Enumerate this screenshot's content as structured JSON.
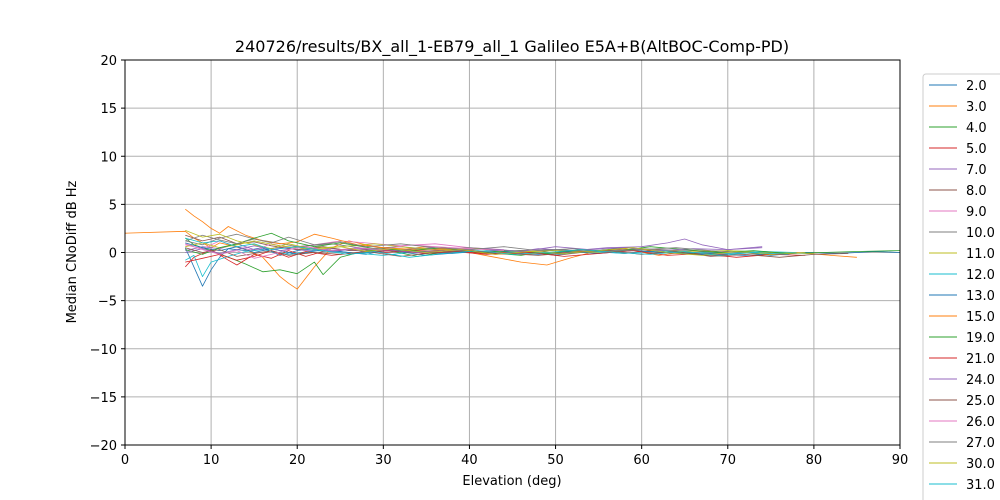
{
  "chart_data": {
    "type": "line",
    "title": "240726/results/BX_all_1-EB79_all_1 Galileo E5A+B(AltBOC-Comp-PD)",
    "xlabel": "Elevation (deg)",
    "ylabel": "Median CNoDiff dB Hz",
    "xlim": [
      0,
      90
    ],
    "ylim": [
      -20,
      20
    ],
    "xticks": [
      0,
      10,
      20,
      30,
      40,
      50,
      60,
      70,
      80,
      90
    ],
    "yticks": [
      -20,
      -15,
      -10,
      -5,
      0,
      5,
      10,
      15,
      20
    ],
    "grid": true,
    "legend_placement": "right, outside plot (clipped)",
    "series": [
      {
        "name": "2.0",
        "color": "#1f77b4",
        "x": [
          7,
          8,
          9,
          10,
          11,
          12,
          14,
          16,
          18,
          20,
          22,
          25,
          28,
          30,
          33,
          36,
          40,
          44,
          48,
          52,
          56,
          60,
          64,
          68,
          72,
          76,
          80
        ],
        "y": [
          0.5,
          -1.5,
          -3.5,
          -1.8,
          -0.5,
          0.4,
          0.2,
          0.5,
          -0.3,
          0.2,
          0.4,
          0.1,
          -0.2,
          0.2,
          0.3,
          -0.1,
          0.1,
          0.0,
          -0.2,
          0.1,
          0.2,
          0.3,
          0.1,
          -0.2,
          -0.3,
          -0.1,
          0.0
        ]
      },
      {
        "name": "3.0",
        "color": "#ff7f0e",
        "x": [
          0,
          7,
          8,
          9,
          10,
          11,
          12,
          14,
          16,
          18,
          19,
          20,
          22,
          24,
          26,
          28,
          30,
          32,
          35,
          38,
          40,
          43,
          46,
          49,
          52,
          55,
          58,
          62,
          66,
          70,
          74,
          78,
          82,
          85
        ],
        "y": [
          2.0,
          2.2,
          1.5,
          1.0,
          0.5,
          1.0,
          0.8,
          0.3,
          -0.5,
          -2.5,
          -3.2,
          -3.8,
          -1.5,
          0.5,
          1.2,
          0.8,
          0.5,
          0.3,
          0.6,
          0.2,
          0.0,
          -0.5,
          -1.0,
          -1.3,
          -0.5,
          0.2,
          0.4,
          -0.3,
          0.2,
          0.1,
          -0.2,
          0.0,
          -0.3,
          -0.5
        ]
      },
      {
        "name": "4.0",
        "color": "#2ca02c",
        "x": [
          7,
          8,
          10,
          12,
          14,
          16,
          18,
          20,
          22,
          23,
          25,
          28,
          30,
          34,
          38,
          42,
          46,
          50,
          54,
          58,
          62,
          66,
          70,
          75
        ],
        "y": [
          1.5,
          0.8,
          0.2,
          -0.5,
          -1.2,
          -2.0,
          -1.8,
          -2.2,
          -1.0,
          -2.3,
          -0.5,
          0.2,
          0.3,
          -0.4,
          0.2,
          0.0,
          -0.3,
          0.3,
          0.1,
          0.5,
          0.2,
          -0.1,
          0.2,
          0.0
        ]
      },
      {
        "name": "5.0",
        "color": "#d62728",
        "x": [
          7,
          8,
          10,
          12,
          13,
          15,
          17,
          19,
          21,
          23,
          26,
          30,
          34,
          38,
          42,
          46,
          50,
          54,
          58,
          62,
          66,
          70
        ],
        "y": [
          -1.5,
          -0.5,
          0.3,
          -0.8,
          -1.3,
          -0.2,
          -0.6,
          0.2,
          -0.4,
          0.1,
          0.3,
          0.0,
          0.2,
          0.1,
          -0.2,
          0.1,
          0.0,
          0.2,
          -0.1,
          0.3,
          0.0,
          -0.2
        ]
      },
      {
        "name": "7.0",
        "color": "#9467bd",
        "x": [
          7,
          9,
          11,
          13,
          15,
          18,
          21,
          24,
          28,
          32,
          36,
          40,
          44,
          48,
          52,
          56,
          60,
          63,
          65,
          67,
          70,
          74
        ],
        "y": [
          0.2,
          0.6,
          0.4,
          0.9,
          0.3,
          0.5,
          0.2,
          0.4,
          0.1,
          0.3,
          0.5,
          0.2,
          -0.1,
          0.4,
          0.2,
          0.5,
          0.6,
          1.0,
          1.4,
          0.8,
          0.3,
          0.5
        ]
      },
      {
        "name": "8.0",
        "color": "#8c564b",
        "x": [
          7,
          9,
          11,
          13,
          15,
          17,
          20,
          23,
          26,
          30,
          34,
          38,
          42,
          46,
          50,
          54,
          58,
          62,
          66,
          70
        ],
        "y": [
          1.8,
          1.2,
          1.6,
          0.9,
          1.1,
          0.7,
          0.3,
          0.6,
          0.2,
          0.4,
          0.1,
          0.3,
          -0.1,
          0.2,
          -0.3,
          0.1,
          0.3,
          0.0,
          -0.2,
          -0.4
        ]
      },
      {
        "name": "9.0",
        "color": "#e377c2",
        "x": [
          7,
          9,
          11,
          13,
          15,
          17,
          19,
          22,
          25,
          28,
          32,
          36,
          40,
          44
        ],
        "y": [
          0.8,
          0.4,
          1.2,
          0.6,
          0.2,
          0.9,
          0.5,
          0.8,
          1.2,
          1.0,
          0.7,
          0.9,
          0.5,
          0.3
        ]
      },
      {
        "name": "10.0",
        "color": "#7f7f7f",
        "x": [
          7,
          9,
          11,
          13,
          15,
          17,
          20,
          24,
          28,
          32,
          36,
          40,
          45,
          50,
          55,
          60,
          65,
          70,
          75
        ],
        "y": [
          1.2,
          0.8,
          1.5,
          1.9,
          1.4,
          1.1,
          0.6,
          0.9,
          0.4,
          0.6,
          0.3,
          0.5,
          0.2,
          0.3,
          0.1,
          0.4,
          0.2,
          -0.1,
          0.0
        ]
      },
      {
        "name": "11.0",
        "color": "#bcbd22",
        "x": [
          7,
          9,
          11,
          13,
          15,
          18,
          21,
          25,
          29,
          33,
          37,
          41,
          45,
          50,
          55,
          60,
          65,
          70,
          75,
          80
        ],
        "y": [
          0.6,
          1.0,
          0.5,
          0.8,
          1.2,
          0.7,
          0.4,
          0.6,
          0.9,
          0.5,
          0.3,
          0.4,
          0.1,
          0.2,
          0.0,
          0.3,
          0.1,
          0.2,
          0.0,
          -0.1
        ]
      },
      {
        "name": "12.0",
        "color": "#17becf",
        "x": [
          7,
          8,
          9,
          10,
          12,
          14,
          16,
          19,
          22,
          26,
          30,
          34,
          38,
          42,
          46,
          50,
          54,
          58,
          62,
          66,
          70,
          74,
          78
        ],
        "y": [
          -0.8,
          -0.3,
          -2.5,
          -1.0,
          -0.4,
          0.1,
          0.3,
          -0.2,
          0.2,
          0.0,
          -0.3,
          0.1,
          -0.1,
          0.2,
          0.0,
          -0.2,
          0.1,
          -0.1,
          0.2,
          0.0,
          -0.1,
          0.1,
          0.0
        ]
      },
      {
        "name": "13.0",
        "color": "#1f77b4",
        "x": [
          7,
          9,
          11,
          13,
          15,
          17,
          20,
          23,
          27,
          31,
          35,
          39,
          43,
          47,
          51,
          55,
          59,
          63,
          67,
          71,
          75,
          79,
          83,
          87,
          90
        ],
        "y": [
          1.0,
          0.5,
          0.2,
          0.6,
          0.0,
          0.4,
          -0.2,
          0.3,
          -0.1,
          0.2,
          -0.3,
          0.0,
          0.2,
          -0.2,
          0.1,
          -0.1,
          0.2,
          0.0,
          -0.2,
          0.1,
          -0.3,
          0.0,
          -0.1,
          0.1,
          0.0
        ]
      },
      {
        "name": "15.0",
        "color": "#ff7f0e",
        "x": [
          7,
          8,
          9,
          10,
          11,
          12,
          14,
          16,
          18,
          20,
          22,
          24,
          27,
          30,
          34,
          38,
          42,
          46,
          50
        ],
        "y": [
          4.5,
          3.8,
          3.2,
          2.5,
          2.0,
          2.7,
          1.8,
          1.2,
          0.9,
          1.1,
          1.9,
          1.5,
          0.8,
          0.5,
          0.3,
          0.4,
          0.1,
          -0.2,
          0.0
        ]
      },
      {
        "name": "19.0",
        "color": "#2ca02c",
        "x": [
          7,
          9,
          11,
          13,
          15,
          17,
          19,
          22,
          25,
          29,
          33,
          37,
          41,
          45,
          49,
          53,
          57,
          61,
          65,
          69,
          73,
          77,
          81,
          85,
          90
        ],
        "y": [
          0.3,
          -0.2,
          0.5,
          0.9,
          1.5,
          2.0,
          1.2,
          0.6,
          1.0,
          0.4,
          0.2,
          0.5,
          0.0,
          0.2,
          -0.1,
          0.3,
          0.1,
          0.6,
          0.3,
          0.0,
          0.2,
          -0.1,
          0.0,
          0.1,
          0.2
        ]
      },
      {
        "name": "21.0",
        "color": "#d62728",
        "x": [
          7,
          9,
          11,
          13,
          15,
          17,
          19,
          21,
          24,
          27,
          31,
          35,
          39,
          43,
          47,
          51,
          55,
          59,
          63,
          67,
          71,
          75,
          79
        ],
        "y": [
          -1.0,
          -0.6,
          -0.2,
          -0.8,
          -0.4,
          0.2,
          -0.5,
          0.1,
          -0.3,
          0.0,
          0.2,
          -0.1,
          0.1,
          -0.2,
          0.0,
          -0.4,
          -0.1,
          0.2,
          -0.3,
          -0.1,
          -0.5,
          -0.2,
          -0.3
        ]
      },
      {
        "name": "24.0",
        "color": "#9467bd",
        "x": [
          7,
          9,
          11,
          13,
          15,
          18,
          21,
          24,
          27,
          30,
          34,
          38,
          42,
          46,
          50,
          54,
          58,
          62,
          66,
          70,
          74
        ],
        "y": [
          0.0,
          0.4,
          -0.1,
          0.3,
          0.7,
          0.2,
          0.6,
          0.1,
          0.4,
          0.3,
          0.0,
          0.2,
          0.4,
          0.1,
          0.6,
          0.3,
          0.5,
          0.2,
          0.4,
          0.3,
          0.6
        ]
      },
      {
        "name": "25.0",
        "color": "#8c564b",
        "x": [
          7,
          9,
          11,
          13,
          15,
          17,
          19,
          22,
          25,
          28,
          32,
          36,
          40,
          44,
          48,
          52,
          56,
          60,
          64,
          68,
          72,
          76,
          80,
          84
        ],
        "y": [
          0.5,
          0.0,
          0.3,
          -0.4,
          -0.1,
          0.2,
          -0.3,
          0.0,
          -0.2,
          0.1,
          -0.4,
          0.0,
          0.2,
          -0.1,
          -0.3,
          0.0,
          0.2,
          -0.2,
          0.1,
          -0.4,
          -0.2,
          -0.5,
          -0.2,
          -0.1
        ]
      },
      {
        "name": "26.0",
        "color": "#e377c2",
        "x": [
          7,
          9,
          11,
          13,
          15,
          17,
          19,
          21,
          24,
          27,
          30,
          33,
          36,
          40,
          44
        ],
        "y": [
          0.9,
          0.3,
          -0.2,
          0.2,
          -0.6,
          -0.2,
          0.3,
          0.6,
          0.2,
          0.5,
          0.3,
          0.8,
          0.6,
          0.4,
          0.2
        ]
      },
      {
        "name": "27.0",
        "color": "#7f7f7f",
        "x": [
          7,
          9,
          11,
          13,
          15,
          17,
          19,
          22,
          25,
          28,
          32,
          36,
          40,
          44,
          48,
          52,
          56,
          60,
          64,
          68,
          72
        ],
        "y": [
          1.2,
          1.8,
          1.3,
          0.9,
          1.4,
          1.0,
          1.6,
          0.8,
          1.1,
          0.6,
          0.9,
          0.5,
          0.3,
          0.6,
          0.2,
          0.4,
          0.1,
          0.3,
          0.5,
          0.2,
          0.0
        ]
      },
      {
        "name": "30.0",
        "color": "#bcbd22",
        "x": [
          7,
          9,
          11,
          13,
          15,
          17,
          19,
          22,
          25,
          28,
          31,
          35,
          39,
          43,
          47,
          51,
          55,
          59,
          63,
          67,
          71,
          75,
          79
        ],
        "y": [
          2.3,
          1.6,
          1.9,
          1.2,
          0.8,
          0.4,
          0.9,
          0.3,
          0.6,
          0.1,
          0.4,
          0.0,
          0.3,
          -0.2,
          0.1,
          -0.1,
          0.2,
          0.5,
          0.0,
          -0.3,
          0.1,
          -0.2,
          0.0
        ]
      },
      {
        "name": "31.0",
        "color": "#17becf",
        "x": [
          7,
          9,
          11,
          13,
          15,
          17,
          20,
          23,
          26,
          29,
          33,
          37,
          41,
          45,
          49,
          53,
          57,
          61,
          65,
          69,
          73,
          77
        ],
        "y": [
          1.5,
          1.0,
          1.2,
          0.6,
          0.9,
          0.3,
          0.6,
          0.2,
          -0.2,
          0.1,
          -0.5,
          -0.1,
          0.2,
          -0.2,
          0.0,
          0.3,
          0.0,
          -0.2,
          0.1,
          -0.3,
          0.0,
          -0.2
        ]
      }
    ]
  }
}
